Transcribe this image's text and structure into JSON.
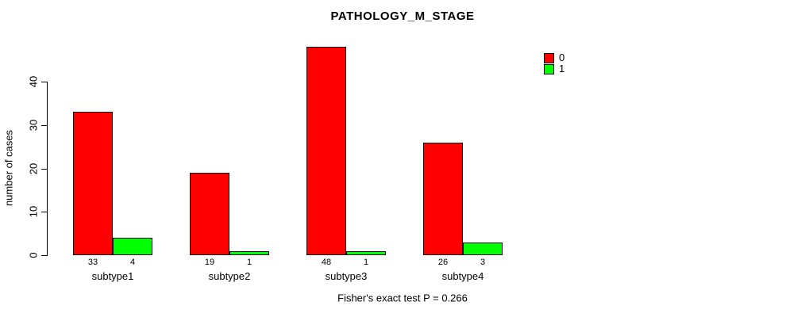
{
  "title": "PATHOLOGY_M_STAGE",
  "caption": "Fisher's exact test P = 0.266",
  "chart_data": {
    "type": "bar",
    "title": "PATHOLOGY_M_STAGE",
    "categories": [
      "subtype1",
      "subtype2",
      "subtype3",
      "subtype4"
    ],
    "series": [
      {
        "name": "0",
        "color": "#FF0000",
        "values": [
          33,
          19,
          48,
          26
        ]
      },
      {
        "name": "1",
        "color": "#00FF00",
        "values": [
          4,
          1,
          1,
          3
        ]
      }
    ],
    "bar_value_labels": [
      [
        "33",
        "4"
      ],
      [
        "19",
        "1"
      ],
      [
        "48",
        "1"
      ],
      [
        "26",
        "3"
      ]
    ],
    "xlabel": "",
    "ylabel": "number of cases",
    "yticks": [
      0,
      10,
      20,
      30,
      40
    ],
    "ylim": [
      0,
      40
    ],
    "grid": false,
    "legend": {
      "position": "top-right",
      "entries": [
        {
          "label": "0",
          "color": "#FF0000"
        },
        {
          "label": "1",
          "color": "#00FF00"
        }
      ]
    },
    "annotation": "Fisher's exact test P = 0.266"
  }
}
